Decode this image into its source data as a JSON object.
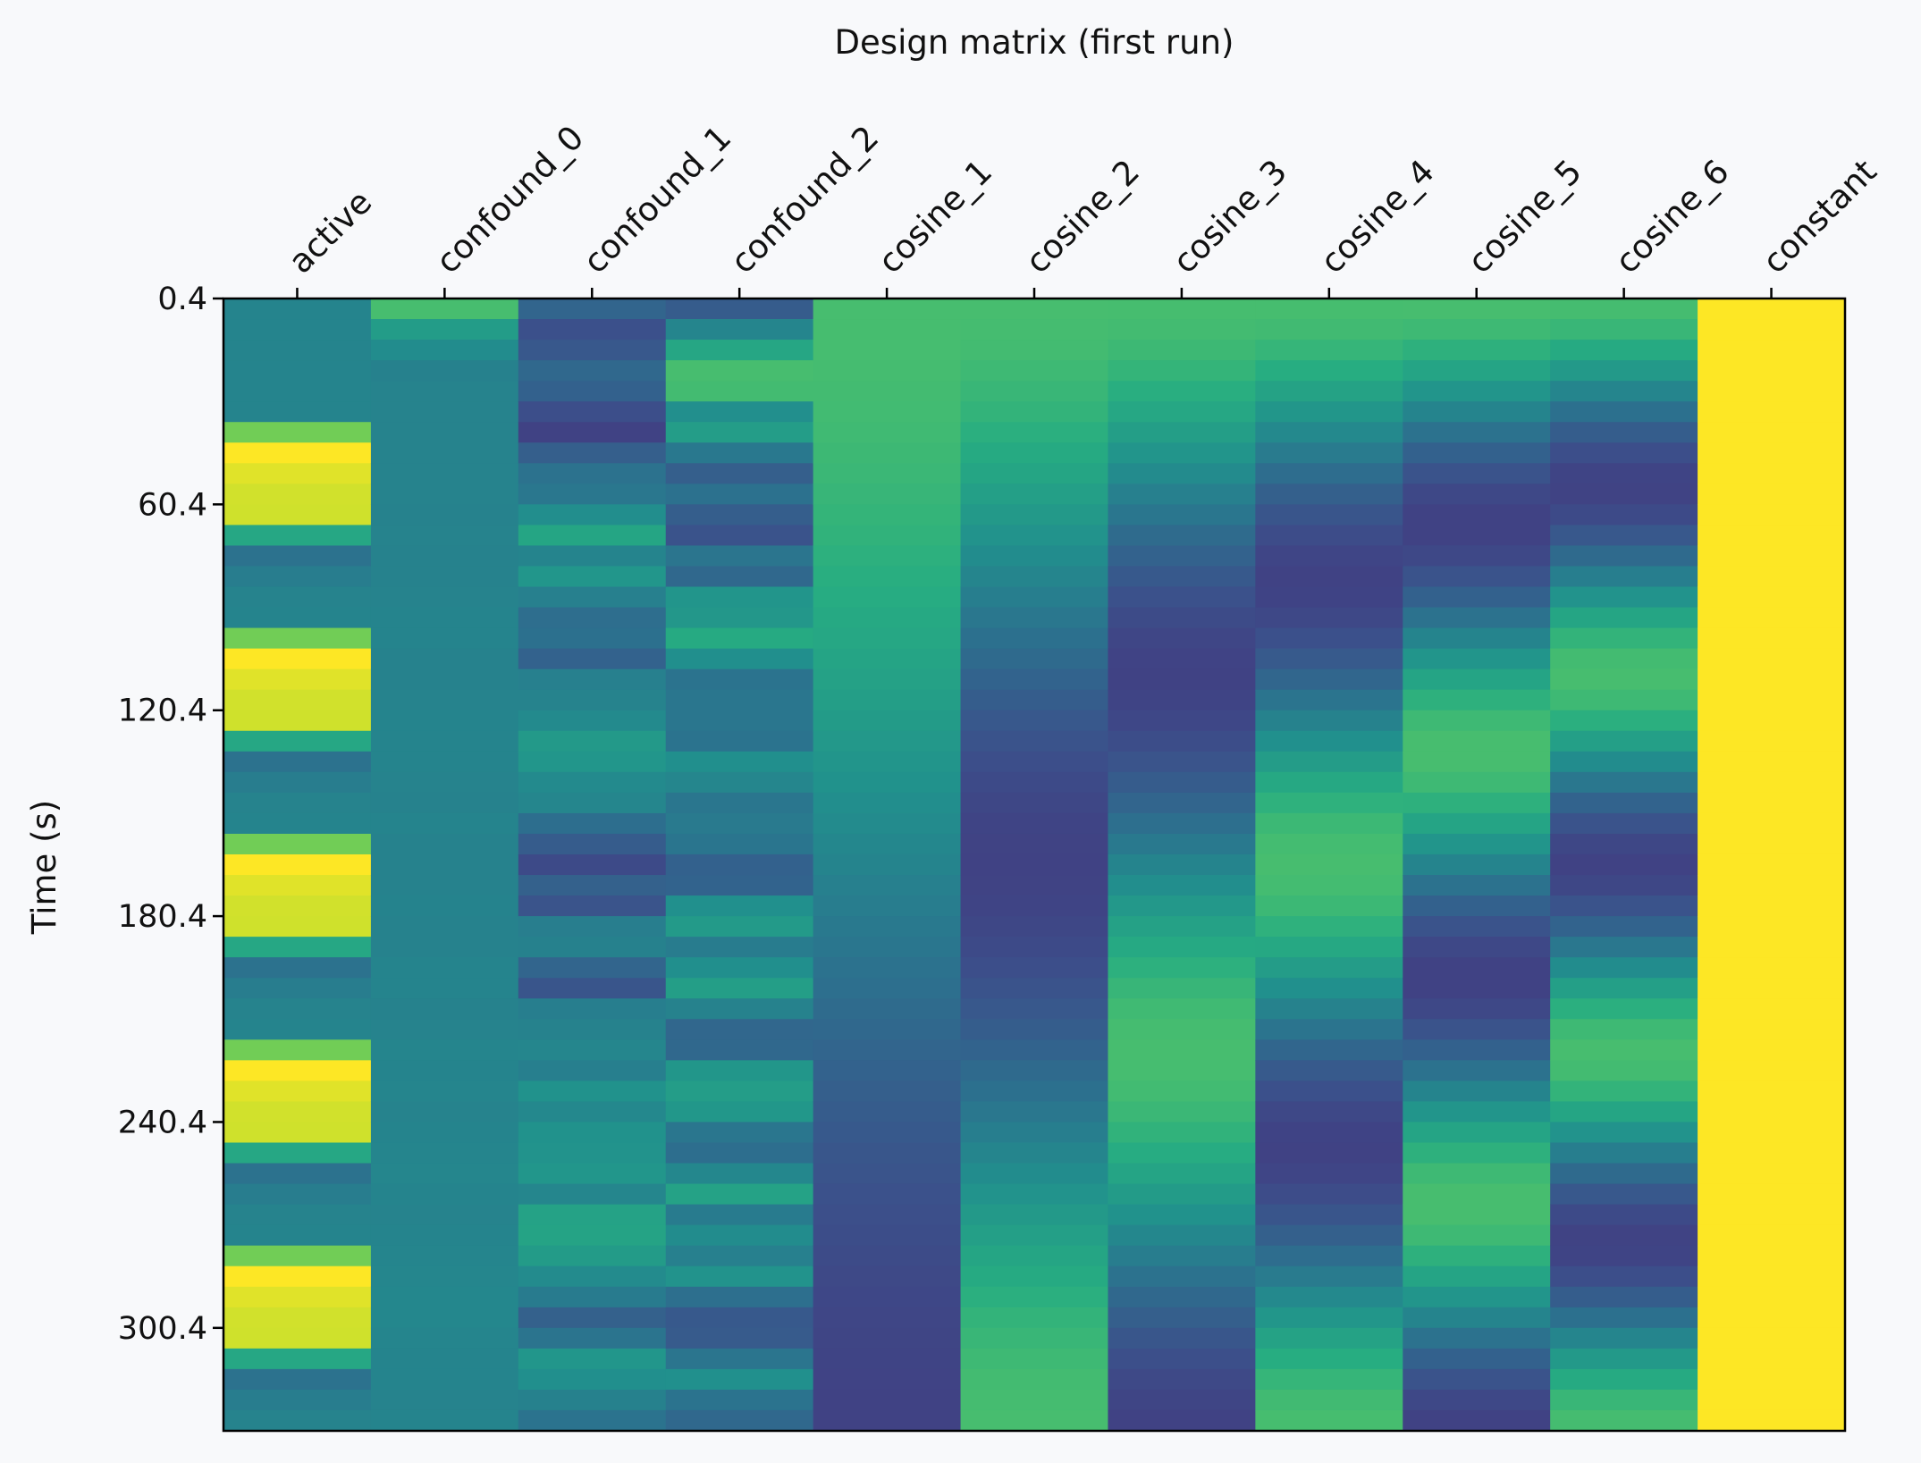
{
  "chart_data": {
    "type": "heatmap",
    "title": "Design matrix (first run)",
    "xlabel": "",
    "ylabel": "Time (s)",
    "columns": [
      "active",
      "confound_0",
      "confound_1",
      "confound_2",
      "cosine_1",
      "cosine_2",
      "cosine_3",
      "cosine_4",
      "cosine_5",
      "cosine_6",
      "constant"
    ],
    "y_tick_labels": [
      "0.4",
      "60.4",
      "120.4",
      "180.4",
      "240.4",
      "300.4"
    ],
    "y_tick_values": [
      0.4,
      60.4,
      120.4,
      180.4,
      240.4,
      300.4
    ],
    "y_range": [
      0.4,
      330.4
    ],
    "n_scans": 55,
    "repetition_time": 6.0,
    "colormap": "viridis",
    "grid": false,
    "legend": "none",
    "block_onsets": [
      30.4,
      90.4,
      150.4,
      210.4,
      270.4
    ],
    "block_duration": 30
  }
}
